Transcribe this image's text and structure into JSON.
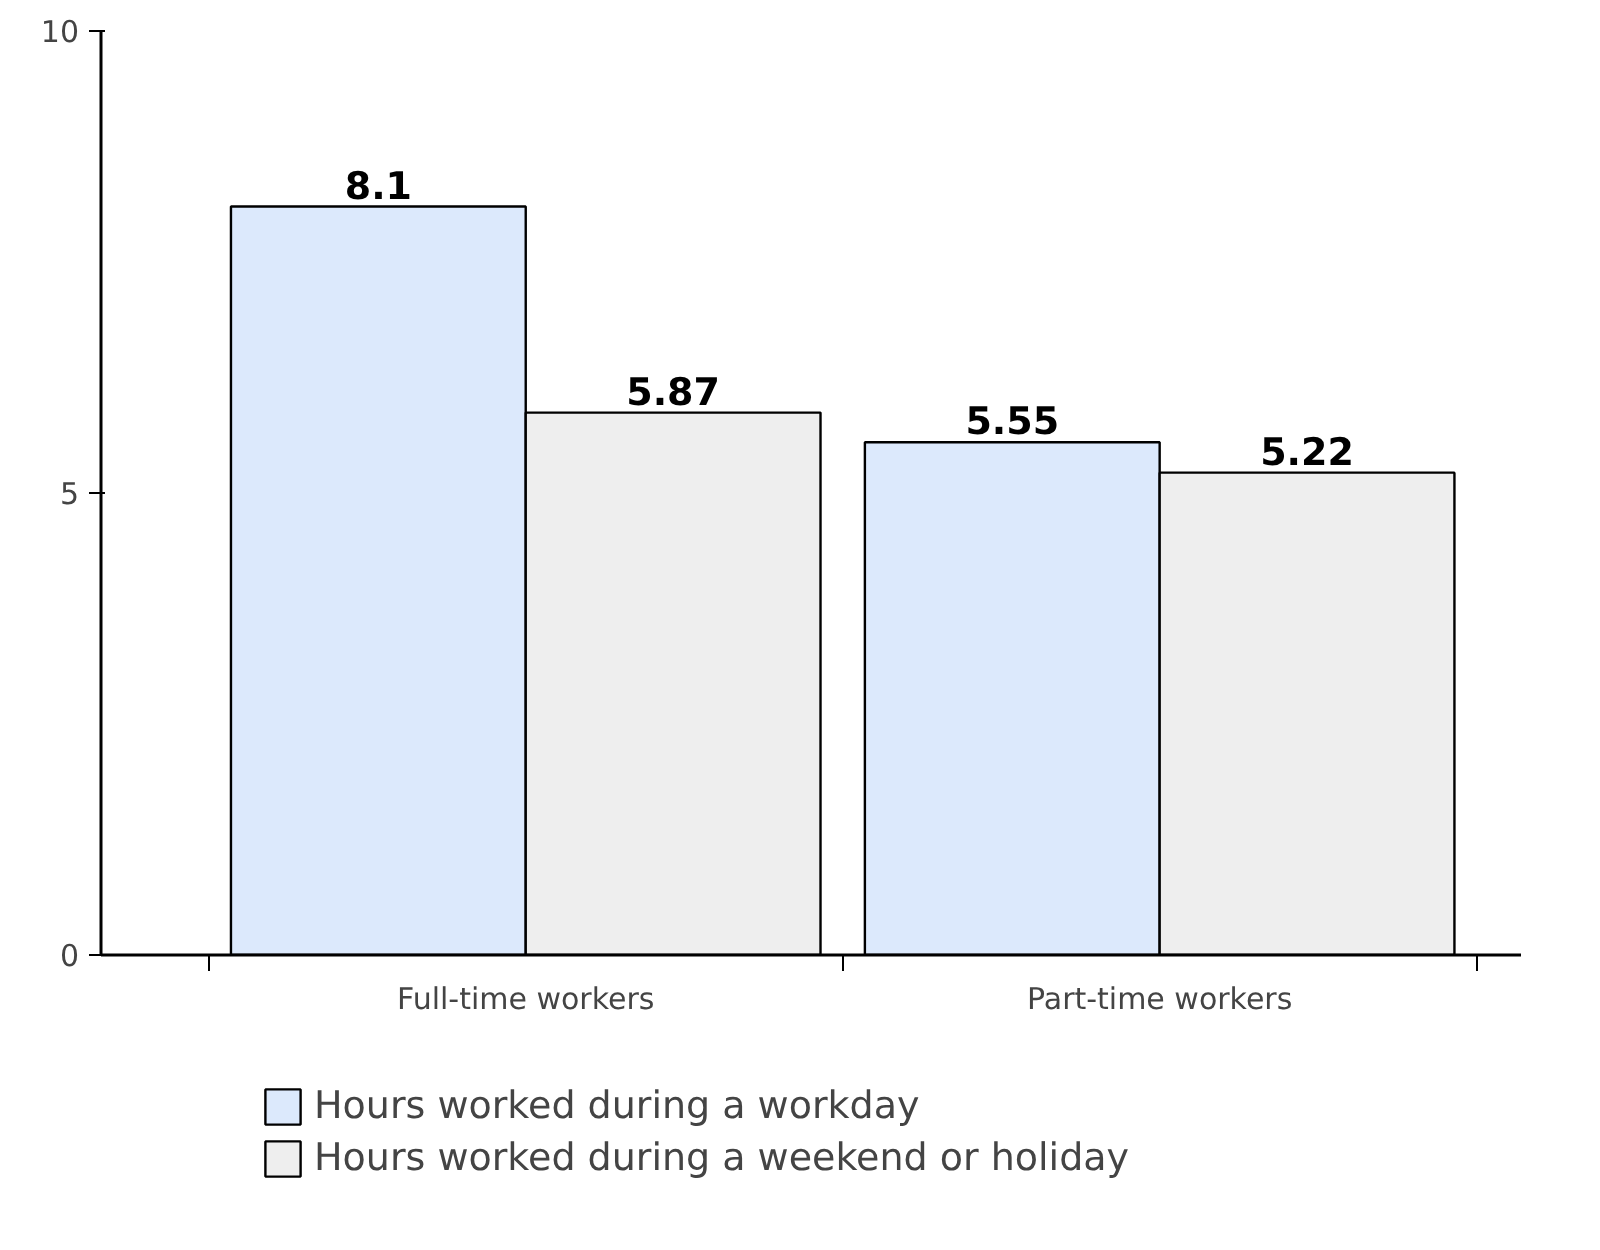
{
  "chart_data": {
    "type": "bar",
    "categories": [
      "Full-time workers",
      "Part-time workers"
    ],
    "series": [
      {
        "name": "Hours worked during a workday",
        "color": "#dce9fc",
        "values": [
          8.1,
          5.55
        ]
      },
      {
        "name": "Hours worked during a weekend or holiday",
        "color": "#eeeeee",
        "values": [
          5.87,
          5.22
        ]
      }
    ],
    "ylim": [
      0,
      10
    ],
    "yticks": [
      0,
      5,
      10
    ],
    "grid": false,
    "legend": "bottom",
    "data_labels": true
  }
}
